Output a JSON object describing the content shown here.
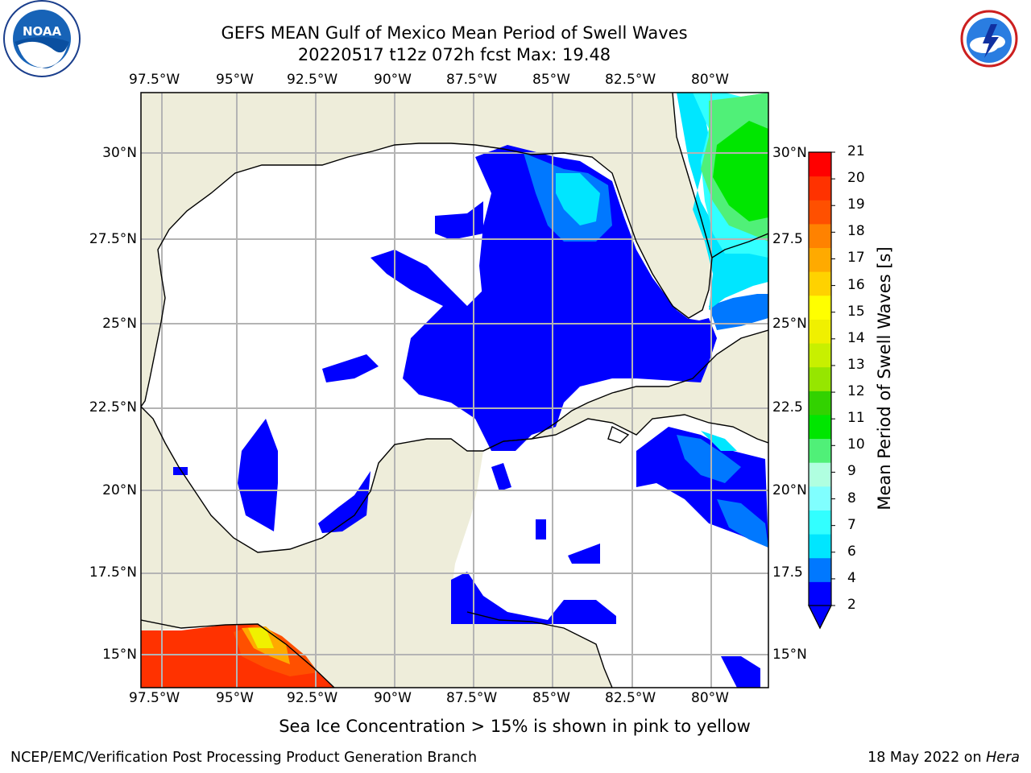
{
  "header": {
    "title_line1": "GEFS MEAN Gulf of Mexico Mean Period of Swell Waves",
    "title_line2": "20220517 t12z 072h fcst   Max: 19.48"
  },
  "logos": {
    "left": {
      "name": "noaa-logo",
      "text": "NOAA"
    },
    "right": {
      "name": "nws-logo",
      "text": "NATIONAL WEATHER SERVICE"
    }
  },
  "map": {
    "lon_labels": [
      "97.5°W",
      "95°W",
      "92.5°W",
      "90°W",
      "87.5°W",
      "85°W",
      "82.5°W",
      "80°W"
    ],
    "lat_labels_left": [
      "30°N",
      "27.5°N",
      "25°N",
      "22.5°N",
      "20°N",
      "17.5°N",
      "15°N"
    ],
    "lat_labels_right": [
      "30°N",
      "27.5",
      "25°N",
      "22.5",
      "20°N",
      "17.5",
      "15°N"
    ],
    "colors": {
      "land": "#eeedda",
      "ocean": "#ffffff",
      "grid": "#b4b4b4",
      "coast": "#000000"
    }
  },
  "colorbar": {
    "title": "Mean Period of Swell Waves [s]",
    "ticks": [
      "2",
      "4",
      "6",
      "7",
      "8",
      "9",
      "10",
      "11",
      "12",
      "13",
      "14",
      "15",
      "16",
      "17",
      "18",
      "19",
      "20",
      "21"
    ],
    "colors": [
      "#0000ff",
      "#0078ff",
      "#00e6ff",
      "#32ffff",
      "#80ffff",
      "#b0ffe0",
      "#50f078",
      "#00e600",
      "#32d200",
      "#96e600",
      "#c8f000",
      "#f0f000",
      "#ffff00",
      "#ffd200",
      "#ffaa00",
      "#ff8200",
      "#ff5000",
      "#ff3200",
      "#ff0000"
    ]
  },
  "note": "Sea Ice Concentration > 15% is shown in pink to yellow",
  "footer": {
    "left": "NCEP/EMC/Verification Post Processing Product Generation Branch",
    "date": "18 May 2022 on ",
    "machine": "Hera"
  }
}
